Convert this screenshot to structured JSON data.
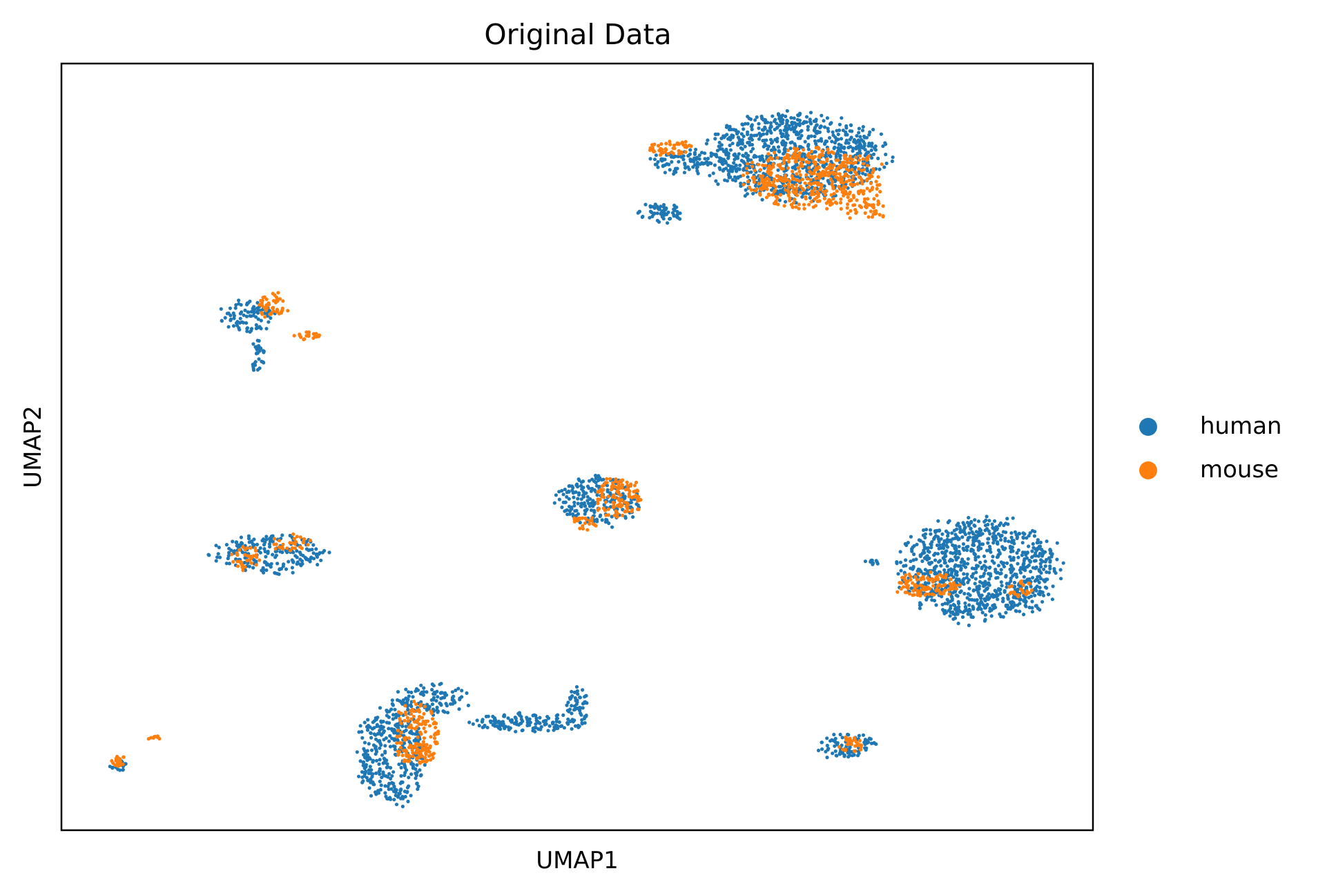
{
  "chart_data": {
    "type": "scatter",
    "title": "Original Data",
    "xlabel": "UMAP1",
    "ylabel": "UMAP2",
    "xlim": [
      0,
      100
    ],
    "ylim": [
      0,
      100
    ],
    "grid": false,
    "ticks": false,
    "legend_position": "right",
    "series": [
      {
        "name": "human",
        "color": "#1f77b4",
        "clusters": [
          {
            "cx": 71,
            "cy": 88,
            "rx": 8.5,
            "ry": 5.5,
            "n": 900,
            "seed": 11
          },
          {
            "cx": 60,
            "cy": 87,
            "rx": 2.8,
            "ry": 1.6,
            "n": 80,
            "seed": 12
          },
          {
            "cx": 58,
            "cy": 80.5,
            "rx": 2.2,
            "ry": 1.2,
            "n": 60,
            "seed": 13
          },
          {
            "cx": 89,
            "cy": 34,
            "rx": 7.5,
            "ry": 6.5,
            "n": 950,
            "seed": 14
          },
          {
            "cx": 78.5,
            "cy": 35,
            "rx": 0.9,
            "ry": 0.3,
            "n": 10,
            "seed": 15
          },
          {
            "cx": 52,
            "cy": 43,
            "rx": 4,
            "ry": 3.2,
            "n": 220,
            "seed": 16
          },
          {
            "cx": 18,
            "cy": 67,
            "rx": 2.5,
            "ry": 2,
            "n": 90,
            "seed": 17
          },
          {
            "cx": 19,
            "cy": 62,
            "rx": 0.7,
            "ry": 2.2,
            "n": 30,
            "seed": 18
          },
          {
            "cx": 20,
            "cy": 36,
            "rx": 5.5,
            "ry": 2.6,
            "n": 200,
            "seed": 19
          },
          {
            "cx": 32,
            "cy": 10,
            "rx": 3.2,
            "ry": 6.5,
            "n": 360,
            "seed": 20
          },
          {
            "cx": 36,
            "cy": 17,
            "rx": 3.5,
            "ry": 2,
            "n": 110,
            "seed": 21
          },
          {
            "cx": 45,
            "cy": 14,
            "rx": 5,
            "ry": 1.2,
            "n": 140,
            "seed": 22
          },
          {
            "cx": 50,
            "cy": 16,
            "rx": 1,
            "ry": 3.5,
            "n": 60,
            "seed": 23
          },
          {
            "cx": 76,
            "cy": 11,
            "rx": 2.8,
            "ry": 1.6,
            "n": 90,
            "seed": 24
          },
          {
            "cx": 5.5,
            "cy": 8.5,
            "rx": 0.8,
            "ry": 0.8,
            "n": 20,
            "seed": 25
          }
        ]
      },
      {
        "name": "mouse",
        "color": "#ff7f0e",
        "clusters": [
          {
            "cx": 73,
            "cy": 85,
            "rx": 6.5,
            "ry": 4,
            "n": 450,
            "seed": 31
          },
          {
            "cx": 59,
            "cy": 89,
            "rx": 2.2,
            "ry": 1,
            "n": 50,
            "seed": 32
          },
          {
            "cx": 78,
            "cy": 81,
            "rx": 2.2,
            "ry": 1.5,
            "n": 40,
            "seed": 33
          },
          {
            "cx": 84,
            "cy": 32,
            "rx": 3.2,
            "ry": 1.6,
            "n": 110,
            "seed": 34
          },
          {
            "cx": 93,
            "cy": 31.5,
            "rx": 1.2,
            "ry": 1,
            "n": 25,
            "seed": 35
          },
          {
            "cx": 54,
            "cy": 43.5,
            "rx": 2.4,
            "ry": 2.6,
            "n": 120,
            "seed": 36
          },
          {
            "cx": 50.5,
            "cy": 40,
            "rx": 1.4,
            "ry": 1,
            "n": 25,
            "seed": 37
          },
          {
            "cx": 20.5,
            "cy": 68.5,
            "rx": 1.5,
            "ry": 1.6,
            "n": 45,
            "seed": 38
          },
          {
            "cx": 24,
            "cy": 64.5,
            "rx": 1.4,
            "ry": 0.5,
            "n": 20,
            "seed": 39
          },
          {
            "cx": 18,
            "cy": 35.5,
            "rx": 1.4,
            "ry": 1.5,
            "n": 35,
            "seed": 40
          },
          {
            "cx": 22.5,
            "cy": 37.5,
            "rx": 2.2,
            "ry": 1,
            "n": 30,
            "seed": 41
          },
          {
            "cx": 34.5,
            "cy": 13,
            "rx": 2.2,
            "ry": 3.5,
            "n": 110,
            "seed": 42
          },
          {
            "cx": 34.5,
            "cy": 10,
            "rx": 1.8,
            "ry": 1.5,
            "n": 60,
            "seed": 43
          },
          {
            "cx": 76.5,
            "cy": 11,
            "rx": 1.2,
            "ry": 1.1,
            "n": 30,
            "seed": 44
          },
          {
            "cx": 5.5,
            "cy": 9,
            "rx": 0.7,
            "ry": 0.7,
            "n": 25,
            "seed": 45
          },
          {
            "cx": 9,
            "cy": 12,
            "rx": 0.7,
            "ry": 0.3,
            "n": 8,
            "seed": 46
          }
        ]
      }
    ]
  }
}
